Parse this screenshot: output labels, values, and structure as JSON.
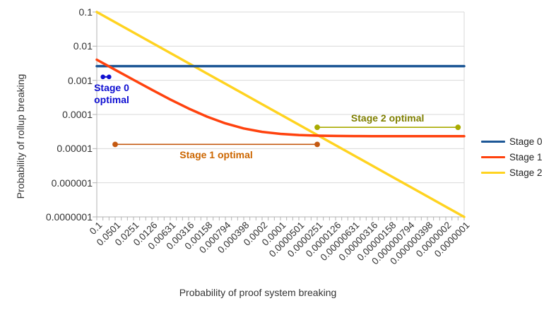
{
  "chart_data": {
    "type": "line",
    "x_scale": "log",
    "y_scale": "log",
    "xlabel": "Probability of proof system breaking",
    "ylabel": "Probability of rollup breaking",
    "xlim": [
      0.1,
      1e-07
    ],
    "ylim": [
      0.1,
      1e-07
    ],
    "grid": "horizontal decade gridlines only",
    "legend_position": "right",
    "y_tick_labels": [
      "0.1",
      "0.01",
      "0.001",
      "0.0001",
      "0.00001",
      "0.000001",
      "0.0000001"
    ],
    "x_tick_labels": [
      "0.1",
      "0.0501",
      "0.0251",
      "0.0126",
      "0.00631",
      "0.00316",
      "0.00158",
      "0.000794",
      "0.000398",
      "0.0002",
      "0.0001",
      "0.0000501",
      "0.0000251",
      "0.0000126",
      "0.00000631",
      "0.00000316",
      "0.00000158",
      "0.000000794",
      "0.000000398",
      "0.0000002",
      "0.0000001"
    ],
    "x": [
      0.1,
      0.0501,
      0.0251,
      0.0126,
      0.00631,
      0.00316,
      0.00158,
      0.000794,
      0.000398,
      0.0002,
      0.0001,
      5.01e-05,
      2.51e-05,
      1.26e-05,
      6.31e-06,
      3.16e-06,
      1.58e-06,
      7.94e-07,
      3.98e-07,
      2e-07,
      1e-07
    ],
    "series": [
      {
        "name": "Stage 0",
        "color": "#1d5796",
        "y": [
          0.0026,
          0.0026,
          0.0026,
          0.0026,
          0.0026,
          0.0026,
          0.0026,
          0.0026,
          0.0026,
          0.0026,
          0.0026,
          0.0026,
          0.0026,
          0.0026,
          0.0026,
          0.0026,
          0.0026,
          0.0026,
          0.0026,
          0.0026,
          0.0026
        ]
      },
      {
        "name": "Stage 1",
        "color": "#ff420e",
        "y": [
          0.00402,
          0.00203,
          0.00103,
          0.000527,
          0.000275,
          0.000149,
          8.62e-05,
          5.48e-05,
          3.89e-05,
          3.1e-05,
          2.7e-05,
          2.5e-05,
          2.4e-05,
          2.35e-05,
          2.33e-05,
          2.31e-05,
          2.31e-05,
          2.3e-05,
          2.3e-05,
          2.3e-05,
          2.3e-05
        ]
      },
      {
        "name": "Stage 2",
        "color": "#ffd320",
        "y": [
          0.1,
          0.0501,
          0.0251,
          0.0126,
          0.00631,
          0.00316,
          0.00158,
          0.000794,
          0.000398,
          0.0002,
          0.0001,
          5.01e-05,
          2.51e-05,
          1.26e-05,
          6.31e-06,
          3.16e-06,
          1.58e-06,
          7.94e-07,
          3.98e-07,
          2e-07,
          1e-07
        ]
      }
    ],
    "annotations": [
      {
        "label": "Stage 0 optimal",
        "type": "point-pair",
        "x_start": 0.0794,
        "x_end": 0.0631,
        "y": 0.00126,
        "color": "#1010d0",
        "text_color": "#0f0fd2",
        "label_position": "below"
      },
      {
        "label": "Stage 1 optimal",
        "type": "range",
        "x_start": 0.0501,
        "x_end": 2.51e-05,
        "y": 1.33e-05,
        "color": "#c45911",
        "text_color": "#cc6600",
        "label_position": "below"
      },
      {
        "label": "Stage 2 optimal",
        "type": "range",
        "x_start": 2.51e-05,
        "x_end": 1.26e-07,
        "y": 4.2e-05,
        "color": "#a9ab00",
        "text_color": "#7f7f00",
        "label_position": "above"
      }
    ]
  }
}
